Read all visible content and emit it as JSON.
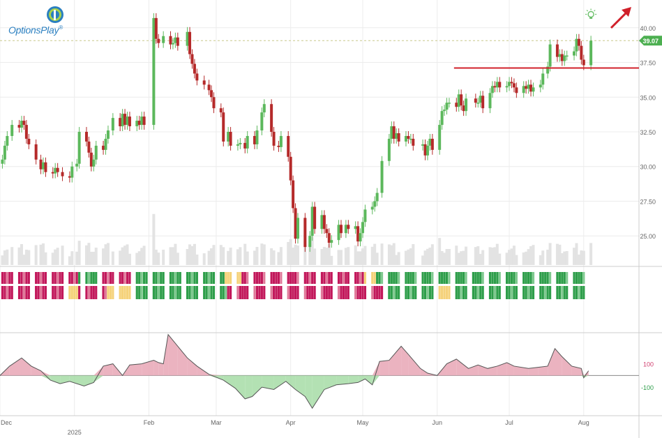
{
  "brand": {
    "name": "OptionsPlay",
    "trademark": "®"
  },
  "colors": {
    "up": "#5cb85c",
    "down": "#b52a2a",
    "volume": "#e3e3e3",
    "resistance": "#d0202a",
    "arrow": "#d0202a",
    "price_tag": "#4caf50",
    "osc_line": "#555555",
    "osc_pos_fill": "#e8a6b5",
    "osc_neg_fill": "#a6dca6",
    "label_pos": "#d04070",
    "label_neg": "#2e9e4a",
    "grid": "#ececec",
    "dashed": "#c9c98a"
  },
  "chart_data": {
    "type": "candlestick",
    "y_axis": {
      "ticks": [
        "40.00",
        "37.50",
        "35.00",
        "32.50",
        "30.00",
        "27.50",
        "25.00"
      ],
      "tick_values": [
        40,
        37.5,
        35,
        32.5,
        30,
        27.5,
        25
      ],
      "range": [
        22.9,
        41.9
      ]
    },
    "x_axis": {
      "labels": [
        "Dec",
        "Feb",
        "Mar",
        "Apr",
        "May",
        "Jun",
        "Jul",
        "Aug"
      ],
      "label_dates": [
        "2024-12-01",
        "2025-02-01",
        "2025-03-01",
        "2025-04-01",
        "2025-05-01",
        "2025-06-01",
        "2025-07-01",
        "2025-08-01"
      ],
      "year_label": "2025",
      "year_date": "2025-01-01",
      "range": [
        "2024-12-01",
        "2025-08-24"
      ]
    },
    "current_price": "39.07",
    "resistance_level": 37.1,
    "resistance_start": "2025-06-08",
    "candle_segments": [
      {
        "start": "2024-12-02",
        "end": "2024-12-11",
        "y": [
          30.5,
          31.5,
          32.2,
          33.0,
          32.8,
          33.3,
          33.0
        ]
      },
      {
        "start": "2024-12-12",
        "end": "2024-12-31",
        "y": [
          32.0,
          31.6,
          30.5,
          29.8,
          30.3,
          29.6,
          29.5,
          29.9,
          29.6,
          29.3,
          29.2,
          30.0
        ]
      },
      {
        "start": "2025-01-02",
        "end": "2025-01-30",
        "y": [
          30.2,
          32.5,
          31.8,
          31.0,
          30.0,
          30.5,
          31.5,
          31.2,
          32.0,
          32.6,
          33.5,
          32.9,
          33.8,
          33.0,
          33.6,
          32.9,
          33.3,
          33.0,
          33.6,
          33.0
        ]
      },
      {
        "start": "2025-02-03",
        "end": "2025-02-28",
        "y": [
          40.7,
          39.2,
          38.9,
          39.4,
          38.8,
          38.9,
          39.3,
          38.7,
          39.7,
          38.1,
          37.4,
          36.7,
          36.2,
          35.9,
          35.5,
          35.0,
          34.2
        ]
      },
      {
        "start": "2025-03-03",
        "end": "2025-03-31",
        "y": [
          33.9,
          31.8,
          32.5,
          31.5,
          31.6,
          31.7,
          31.3,
          32.2,
          31.6,
          32.6,
          33.9,
          34.5,
          32.5,
          31.5,
          31.4,
          32.2,
          30.7
        ]
      },
      {
        "start": "2025-04-01",
        "end": "2025-04-30",
        "y": [
          29.0,
          27.0,
          24.8,
          26.3,
          24.2,
          25.0,
          27.1,
          25.5,
          26.5,
          25.5,
          25.2,
          24.5,
          24.7,
          25.8,
          25.2,
          25.8,
          25.5,
          25.7,
          24.6,
          25.2
        ]
      },
      {
        "start": "2025-05-01",
        "end": "2025-05-30",
        "y": [
          26.0,
          26.9,
          27.1,
          27.5,
          28.1,
          30.4,
          32.0,
          32.9,
          32.0,
          32.4,
          31.8,
          32.2,
          32.0,
          32.0,
          31.5,
          31.6,
          30.8,
          31.5,
          32.0,
          31.2
        ]
      },
      {
        "start": "2025-06-02",
        "end": "2025-06-30",
        "y": [
          33.0,
          34.0,
          34.1,
          34.6,
          34.6,
          34.3,
          35.2,
          34.4,
          34.0,
          34.9,
          34.6,
          34.6,
          35.1,
          34.2,
          35.3,
          35.8,
          35.7,
          36.1,
          35.7,
          35.8
        ]
      },
      {
        "start": "2025-07-01",
        "end": "2025-07-31",
        "y": [
          36.1,
          36.0,
          35.7,
          35.3,
          35.8,
          35.6,
          35.9,
          35.4,
          35.7,
          35.9,
          36.7,
          37.2,
          38.8,
          37.9,
          38.1,
          37.6,
          38.0,
          38.0,
          38.3,
          39.2,
          38.7,
          37.7
        ]
      },
      {
        "start": "2025-08-01",
        "end": "2025-08-04",
        "y": [
          37.3,
          39.07
        ]
      }
    ],
    "rating_rows": [
      {
        "segments": [
          {
            "start": "2024-12-01",
            "end": "2025-01-02",
            "color": "red"
          },
          {
            "start": "2025-01-03",
            "end": "2025-01-12",
            "color": "green"
          },
          {
            "start": "2025-01-13",
            "end": "2025-01-26",
            "color": "red"
          },
          {
            "start": "2025-01-27",
            "end": "2025-03-04",
            "color": "green"
          },
          {
            "start": "2025-03-05",
            "end": "2025-03-11",
            "color": "yellow"
          },
          {
            "start": "2025-03-12",
            "end": "2025-04-06",
            "color": "red"
          },
          {
            "start": "2025-04-07",
            "end": "2025-05-01",
            "color": "red"
          },
          {
            "start": "2025-05-02",
            "end": "2025-05-06",
            "color": "yellow"
          },
          {
            "start": "2025-05-07",
            "end": "2025-08-03",
            "color": "green"
          }
        ]
      },
      {
        "segments": [
          {
            "start": "2024-12-01",
            "end": "2024-12-28",
            "color": "red"
          },
          {
            "start": "2024-12-29",
            "end": "2025-01-02",
            "color": "yellow"
          },
          {
            "start": "2025-01-03",
            "end": "2025-01-14",
            "color": "red"
          },
          {
            "start": "2025-01-15",
            "end": "2025-01-24",
            "color": "yellow"
          },
          {
            "start": "2025-01-25",
            "end": "2025-03-05",
            "color": "green"
          },
          {
            "start": "2025-03-06",
            "end": "2025-05-10",
            "color": "red"
          },
          {
            "start": "2025-05-11",
            "end": "2025-06-01",
            "color": "green"
          },
          {
            "start": "2025-06-02",
            "end": "2025-06-06",
            "color": "yellow"
          },
          {
            "start": "2025-06-07",
            "end": "2025-08-03",
            "color": "green"
          }
        ]
      }
    ],
    "oscillator": {
      "labels": [
        {
          "text": "100",
          "value": 100,
          "color": "label_pos"
        },
        {
          "text": "-100",
          "value": -100,
          "color": "label_neg"
        }
      ],
      "baseline": 0,
      "range": [
        -320,
        360
      ],
      "points": [
        [
          "2024-12-01",
          0
        ],
        [
          "2024-12-05",
          80
        ],
        [
          "2024-12-10",
          150
        ],
        [
          "2024-12-14",
          80
        ],
        [
          "2024-12-18",
          40
        ],
        [
          "2024-12-22",
          -40
        ],
        [
          "2024-12-26",
          -70
        ],
        [
          "2024-12-30",
          -50
        ],
        [
          "2025-01-05",
          -90
        ],
        [
          "2025-01-09",
          -60
        ],
        [
          "2025-01-13",
          80
        ],
        [
          "2025-01-17",
          100
        ],
        [
          "2025-01-21",
          0
        ],
        [
          "2025-01-24",
          90
        ],
        [
          "2025-01-29",
          100
        ],
        [
          "2025-02-03",
          130
        ],
        [
          "2025-02-05",
          110
        ],
        [
          "2025-02-07",
          100
        ],
        [
          "2025-02-09",
          350
        ],
        [
          "2025-02-13",
          250
        ],
        [
          "2025-02-17",
          150
        ],
        [
          "2025-02-21",
          80
        ],
        [
          "2025-02-26",
          10
        ],
        [
          "2025-03-04",
          -40
        ],
        [
          "2025-03-09",
          -110
        ],
        [
          "2025-03-13",
          -200
        ],
        [
          "2025-03-16",
          -180
        ],
        [
          "2025-03-20",
          -100
        ],
        [
          "2025-03-25",
          -120
        ],
        [
          "2025-03-30",
          -50
        ],
        [
          "2025-04-03",
          -120
        ],
        [
          "2025-04-07",
          -180
        ],
        [
          "2025-04-10",
          -280
        ],
        [
          "2025-04-15",
          -120
        ],
        [
          "2025-04-20",
          -80
        ],
        [
          "2025-04-25",
          -70
        ],
        [
          "2025-04-29",
          -60
        ],
        [
          "2025-05-02",
          -30
        ],
        [
          "2025-05-05",
          -80
        ],
        [
          "2025-05-08",
          120
        ],
        [
          "2025-05-12",
          130
        ],
        [
          "2025-05-17",
          250
        ],
        [
          "2025-05-20",
          180
        ],
        [
          "2025-05-25",
          60
        ],
        [
          "2025-05-28",
          20
        ],
        [
          "2025-06-01",
          0
        ],
        [
          "2025-06-05",
          100
        ],
        [
          "2025-06-09",
          140
        ],
        [
          "2025-06-14",
          60
        ],
        [
          "2025-06-18",
          90
        ],
        [
          "2025-06-22",
          60
        ],
        [
          "2025-06-26",
          80
        ],
        [
          "2025-06-30",
          110
        ],
        [
          "2025-07-03",
          80
        ],
        [
          "2025-07-09",
          60
        ],
        [
          "2025-07-13",
          70
        ],
        [
          "2025-07-17",
          80
        ],
        [
          "2025-07-20",
          230
        ],
        [
          "2025-07-23",
          160
        ],
        [
          "2025-07-27",
          80
        ],
        [
          "2025-07-31",
          60
        ],
        [
          "2025-08-01",
          -20
        ],
        [
          "2025-08-03",
          40
        ]
      ]
    }
  }
}
